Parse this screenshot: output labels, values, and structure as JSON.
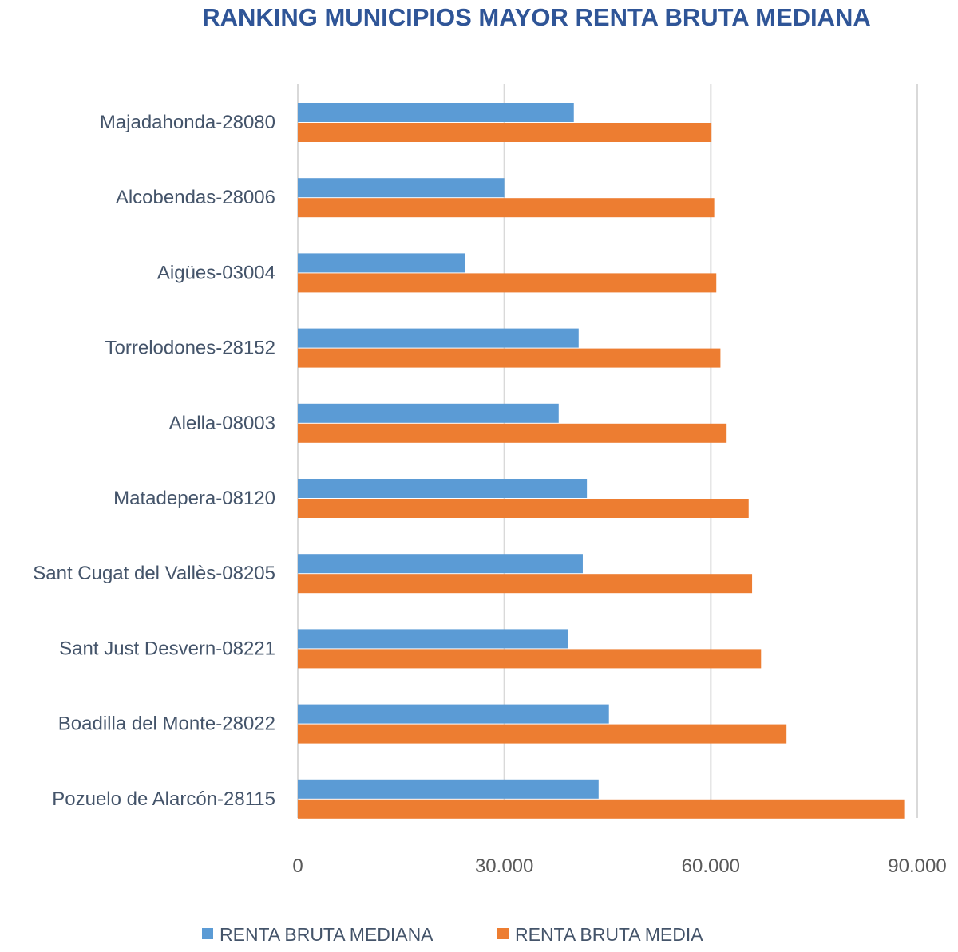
{
  "chart_data": {
    "type": "bar",
    "orientation": "horizontal",
    "title": "RANKING MUNICIPIOS MAYOR RENTA BRUTA MEDIANA",
    "categories": [
      "Majadahonda-28080",
      "Alcobendas-28006",
      "Aigües-03004",
      "Torrelodones-28152",
      "Alella-08003",
      "Matadepera-08120",
      "Sant Cugat del Vallès-08205",
      "Sant Just Desvern-08221",
      "Boadilla del Monte-28022",
      "Pozuelo de Alarcón-28115"
    ],
    "series": [
      {
        "name": "RENTA BRUTA MEDIANA",
        "color": "#5B9BD5",
        "values": [
          40100,
          30000,
          24300,
          40800,
          37900,
          42000,
          41400,
          39200,
          45200,
          43700
        ]
      },
      {
        "name": "RENTA BRUTA MEDIA",
        "color": "#ED7D31",
        "values": [
          60100,
          60500,
          60800,
          61400,
          62300,
          65500,
          66000,
          67300,
          71000,
          88100
        ]
      }
    ],
    "xlim": [
      0,
      90000
    ],
    "xticks": [
      0,
      30000,
      60000,
      90000
    ],
    "xtick_labels": [
      "0",
      "30.000",
      "60.000",
      "90.000"
    ],
    "grid": true,
    "legend_position": "bottom",
    "xlabel": "",
    "ylabel": ""
  }
}
